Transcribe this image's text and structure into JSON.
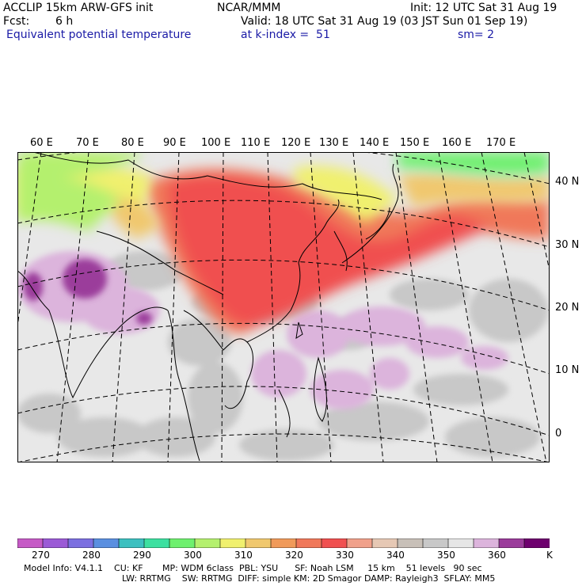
{
  "header": {
    "model": "ACCLIP 15km ARW-GFS init",
    "center": "NCAR/MMM",
    "init": "Init: 12 UTC Sat 31 Aug 19",
    "fcst_label": "Fcst:",
    "fcst_value": "6 h",
    "valid": "Valid: 18 UTC Sat 31 Aug 19 (03 JST Sun 01 Sep 19)",
    "field": "Equivalent potential temperature",
    "level": "at k-index =  51",
    "smooth": "sm= 2"
  },
  "map": {
    "lon_labels": [
      "60 E",
      "70 E",
      "80 E",
      "90 E",
      "100 E",
      "110 E",
      "120 E",
      "130 E",
      "140 E",
      "150 E",
      "160 E",
      "170 E"
    ],
    "lat_labels": [
      "40 N",
      "30 N",
      "20 N",
      "10 N",
      "0"
    ]
  },
  "colorbar": {
    "unit": "K",
    "tick_labels": [
      "270",
      "280",
      "290",
      "300",
      "310",
      "320",
      "330",
      "340",
      "350",
      "360"
    ],
    "colors": [
      "#c65ac6",
      "#9b5ad6",
      "#7b6fe0",
      "#5a8fe0",
      "#3cc0c0",
      "#3ce0a0",
      "#6ef06e",
      "#b4f06e",
      "#f0f06e",
      "#f0c86e",
      "#f09a5a",
      "#f0785a",
      "#f05050",
      "#f0a08a",
      "#e6c8b4",
      "#c8c0b8",
      "#c8c8c8",
      "#e6e6e6",
      "#dcb4dc",
      "#9b3c9b",
      "#6e006e"
    ]
  },
  "model_info": {
    "line1": "Model Info: V4.1.1    CU: KF       MP: WDM 6class  PBL: YSU      SF: Noah LSM     15 km    51 levels   90 sec",
    "line2": "LW: RRTMG    SW: RRTMG  DIFF: simple KM: 2D Smagor DAMP: Rayleigh3  SFLAY: MM5"
  }
}
